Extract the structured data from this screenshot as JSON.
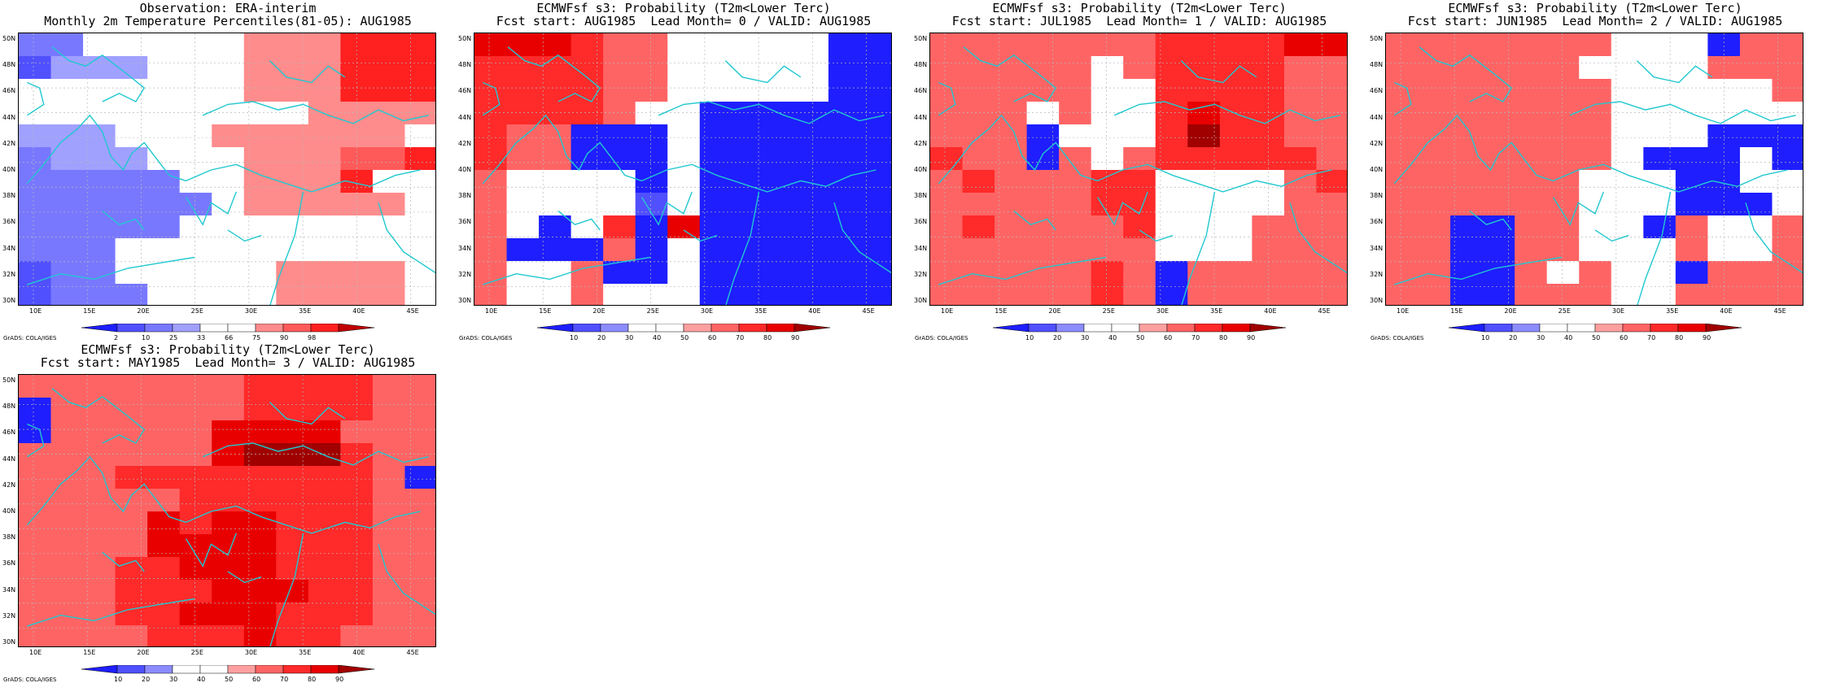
{
  "credit": "GrADS: COLA/IGES",
  "lat_labels": [
    "30N",
    "32N",
    "34N",
    "36N",
    "38N",
    "40N",
    "42N",
    "44N",
    "46N",
    "48N",
    "50N"
  ],
  "lon_labels": [
    "10E",
    "15E",
    "20E",
    "25E",
    "30E",
    "35E",
    "40E",
    "45E"
  ],
  "colors": {
    "coast": "#20c8d0",
    "grid": "#b8b8b8",
    "prob_scale": [
      "#1e1eff",
      "#5050ff",
      "#8c8cff",
      "#ffffff",
      "#ffffff",
      "#ffa0a0",
      "#ff6464",
      "#ff2a2a",
      "#e80000",
      "#a00000"
    ],
    "obs_scale": [
      "#1e1eff",
      "#5050ff",
      "#7878ff",
      "#a0a0ff",
      "#ffffff",
      "#ffffff",
      "#ff8c8c",
      "#ff5a5a",
      "#ff2020",
      "#c00000"
    ]
  },
  "colorbars": {
    "observation": [
      "2",
      "10",
      "25",
      "33",
      "66",
      "75",
      "90",
      "98"
    ],
    "probability": [
      "10",
      "20",
      "30",
      "40",
      "50",
      "60",
      "70",
      "80",
      "90"
    ]
  },
  "panels": [
    {
      "title1": "Observation: ERA-interim",
      "title2": "Monthly 2m Temperature Percentiles(81-05): AUG1985",
      "scale": "obs",
      "grid": [
        "2244444666888",
        "1333444666888",
        "4444444666888",
        "4444444446666",
        "3334446666664",
        "2333444666778",
        "2222244666844",
        "2222224666664",
        "2222244444444",
        "2224444444444",
        "1224444466664",
        "1222444466664"
      ]
    },
    {
      "title1": "ECMWFsf s3: Probability (T2m<Lower Terc)",
      "title2": "Fcst start: AUG1985  Lead Month= 0 / VALID: AUG1985",
      "scale": "prob",
      "grid": [
        "8887664444400",
        "7777664444400",
        "7777664444400",
        "7777644000000",
        "7660004000000",
        "7660004000000",
        "6444404000000",
        "6444414000000",
        "6404708000000",
        "6000604000000",
        "6446004000000",
        "6446444000000"
      ]
    },
    {
      "title1": "ECMWFsf s3: Probability (T2m<Lower Terc)",
      "title2": "Fcst start: JUL1985  Lead Month= 1 / VALID: AUG1985",
      "scale": "prob",
      "grid": [
        "6666666777788",
        "6666646777766",
        "6666644777766",
        "6664644787766",
        "6660444797766",
        "7660646777776",
        "6766677444467",
        "6666677444466",
        "6766667444666",
        "6666666444666",
        "6666676066666",
        "6666676066666"
      ]
    },
    {
      "title1": "ECMWFsf s3: Probability (T2m<Lower Terc)",
      "title2": "Fcst start: JUN1985  Lead Month= 2 / VALID: AUG1985",
      "scale": "prob",
      "grid": [
        "6666666444066",
        "6666664444666",
        "6666666444446",
        "6666666444444",
        "6666666444000",
        "6666666400040",
        "6666664440044",
        "6666664440004",
        "6600664406446",
        "6600664446446",
        "6600646440666",
        "6600666446666"
      ]
    },
    {
      "title1": "ECMWFsf s3: Probability (T2m<Lower Terc)",
      "title2": "Fcst start: MAY1985  Lead Month= 3 / VALID: AUG1985",
      "scale": "prob",
      "grid": [
        "6666666777766",
        "0666666777766",
        "0666668888666",
        "6666668999766",
        "6667777777760",
        "6666677777766",
        "6666878877766",
        "6666888877766",
        "6667788877766",
        "6667778887766",
        "6667788877766",
        "6666777877666"
      ]
    }
  ]
}
